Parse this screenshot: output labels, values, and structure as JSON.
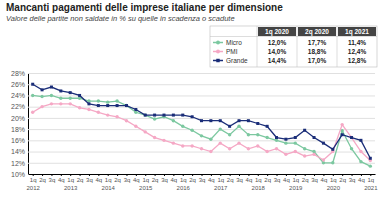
{
  "chart_data": {
    "type": "line",
    "title": "Mancanti pagamenti delle imprese italiane per dimensione",
    "subtitle": "Valore delle partite non saldate in % su quelle in scadenza o scadute",
    "categories": [
      "1q",
      "2q",
      "3q",
      "4q",
      "1q",
      "2q",
      "3q",
      "4q",
      "1q",
      "2q",
      "3q",
      "4q",
      "1q",
      "2q",
      "3q",
      "4q",
      "1q",
      "2q",
      "3q",
      "4q",
      "1q",
      "2q",
      "3q",
      "4q",
      "1q",
      "2q",
      "3q",
      "4q",
      "1q",
      "2q",
      "3q",
      "4q",
      "1q",
      "2q",
      "3q",
      "4q",
      "1q"
    ],
    "years": [
      "2012",
      null,
      null,
      null,
      "2013",
      null,
      null,
      null,
      "2014",
      null,
      null,
      null,
      "2015",
      null,
      null,
      null,
      "2016",
      null,
      null,
      null,
      "2017",
      null,
      null,
      null,
      "2018",
      null,
      null,
      null,
      "2019",
      null,
      null,
      null,
      "2020",
      null,
      null,
      null,
      "2021"
    ],
    "table_columns": [
      "1q 2020",
      "2q 2020",
      "1q 2021"
    ],
    "series": [
      {
        "name": "Micro",
        "color": "#7cc8a0",
        "marker": "circle",
        "table_labels": [
          "12,0%",
          "17,7%",
          "11,4%"
        ],
        "values": [
          24.0,
          23.8,
          24.0,
          23.5,
          23.5,
          23.5,
          23.0,
          23.0,
          22.8,
          23.0,
          22.2,
          21.0,
          20.5,
          19.8,
          20.2,
          19.5,
          18.5,
          17.8,
          16.8,
          16.2,
          18.0,
          17.0,
          18.5,
          17.0,
          17.0,
          16.5,
          16.0,
          15.5,
          15.5,
          14.5,
          14.0,
          12.0,
          12.0,
          17.7,
          14.5,
          12.2,
          11.4
        ]
      },
      {
        "name": "PMI",
        "color": "#f5a8c5",
        "marker": "circle",
        "table_labels": [
          "14,0%",
          "18,8%",
          "12,4%"
        ],
        "values": [
          21.0,
          22.0,
          22.5,
          22.5,
          22.5,
          21.8,
          21.5,
          21.0,
          20.5,
          20.2,
          19.5,
          18.5,
          17.5,
          16.5,
          16.0,
          15.5,
          15.0,
          15.0,
          14.5,
          14.0,
          15.5,
          14.5,
          15.5,
          14.5,
          15.0,
          14.0,
          14.5,
          13.5,
          14.0,
          13.2,
          13.5,
          12.5,
          14.0,
          18.8,
          16.5,
          14.0,
          12.4
        ]
      },
      {
        "name": "Grande",
        "color": "#1a2d78",
        "marker": "square",
        "table_labels": [
          "14,4%",
          "17,0%",
          "12,8%"
        ],
        "values": [
          26.0,
          25.0,
          25.5,
          24.8,
          24.5,
          24.0,
          22.5,
          22.2,
          22.2,
          22.2,
          22.2,
          21.5,
          20.5,
          20.5,
          20.5,
          20.5,
          20.5,
          20.2,
          19.5,
          19.5,
          19.5,
          18.5,
          19.5,
          19.5,
          19.0,
          18.5,
          16.5,
          16.2,
          16.5,
          17.8,
          16.5,
          15.5,
          14.4,
          17.0,
          16.5,
          16.0,
          12.8
        ]
      }
    ],
    "ylim": [
      10,
      28
    ],
    "yticks": [
      {
        "value": 10,
        "label": "10%"
      },
      {
        "value": 12,
        "label": "12%"
      },
      {
        "value": 14,
        "label": "14%"
      },
      {
        "value": 16,
        "label": "16%"
      },
      {
        "value": 18,
        "label": "18%"
      },
      {
        "value": 20,
        "label": "20%"
      },
      {
        "value": 22,
        "label": "22%"
      },
      {
        "value": 24,
        "label": "24%"
      },
      {
        "value": 26,
        "label": "26%"
      },
      {
        "value": 28,
        "label": "28%"
      }
    ],
    "grid": true
  }
}
